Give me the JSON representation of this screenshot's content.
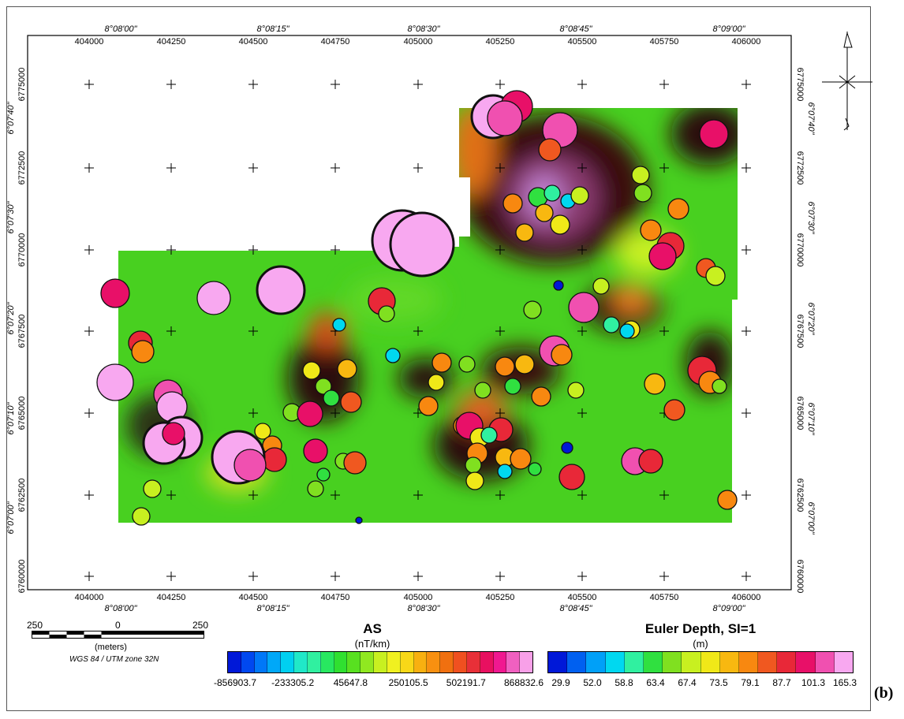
{
  "panel_label": "(b)",
  "map": {
    "easting_ticks": [
      "404000",
      "404250",
      "404500",
      "404750",
      "405000",
      "405250",
      "405500",
      "405750",
      "406000"
    ],
    "northing_ticks_left": [
      "6775000",
      "6772500",
      "6770000",
      "6767500",
      "6765000",
      "6762500",
      "6760000"
    ],
    "northing_ticks_right": [
      "6775000",
      "6772500",
      "6770000",
      "6767500",
      "6765000",
      "6762500",
      "6760000"
    ],
    "longitude_ticks_top": [
      "8°08'00\"",
      "8°08'15\"",
      "8°08'30\"",
      "8°08'45\"",
      "8°09'00\""
    ],
    "longitude_ticks_bottom": [
      "8°08'00\"",
      "8°08'15\"",
      "8°08'30\"",
      "8°08'45\"",
      "8°09'00\""
    ],
    "latitude_ticks_left": [
      "6°07'40\"",
      "6°07'30\"",
      "6°07'20\"",
      "6°07'10\"",
      "6°07'00\""
    ],
    "latitude_ticks_right": [
      "6°07'40\"",
      "6°07'30\"",
      "6°07'20\"",
      "6°07'10\"",
      "6°07'00\""
    ]
  },
  "scale_bar": {
    "left_label": "250",
    "center_label": "0",
    "right_label": "250",
    "unit": "(meters)",
    "projection": "WGS 84 / UTM zone 32N"
  },
  "legend_as": {
    "title": "AS",
    "unit": "(nT/km)",
    "labels": [
      "-856903.7",
      "-233305.2",
      "45647.8",
      "250105.5",
      "502191.7",
      "868832.6"
    ],
    "colors": [
      "#0018d8",
      "#0048f0",
      "#0078f8",
      "#00a8f8",
      "#00d0f0",
      "#20e8c8",
      "#30f0a0",
      "#28e860",
      "#30e030",
      "#58e020",
      "#90e820",
      "#c8f020",
      "#f0f020",
      "#f8d818",
      "#f8b010",
      "#f89010",
      "#f07010",
      "#f05020",
      "#e83038",
      "#e81060",
      "#f01890",
      "#f060c0",
      "#f8a0e8"
    ]
  },
  "legend_euler": {
    "title": "Euler Depth, SI=1",
    "unit": "(m)",
    "labels": [
      "29.9",
      "52.0",
      "58.8",
      "63.4",
      "67.4",
      "73.5",
      "79.1",
      "87.7",
      "101.3",
      "165.3"
    ],
    "colors": [
      "#0018d8",
      "#0060f0",
      "#00a0f8",
      "#00d8f0",
      "#30f0a0",
      "#30e040",
      "#80e020",
      "#c8f020",
      "#f0e818",
      "#f8b810",
      "#f88810",
      "#f05820",
      "#e82838",
      "#e81068",
      "#f050b0",
      "#f8a8f0"
    ]
  }
}
